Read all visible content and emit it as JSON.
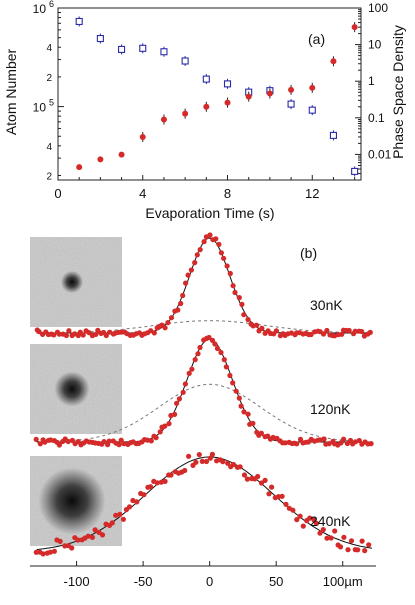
{
  "chart_data": [
    {
      "panel_label": "(a)",
      "type": "scatter",
      "xlabel": "Evaporation Time (s)",
      "ylabel_left": "Atom Number",
      "ylabel_right": "Phase Space Density",
      "x_ticks": [
        "0",
        "4",
        "8",
        "12"
      ],
      "y_left_ticks": [
        "2",
        "4",
        "10^5",
        "2",
        "4",
        "10^6"
      ],
      "y_right_ticks": [
        "0.01",
        "0.1",
        "1",
        "10",
        "100"
      ],
      "xlim": [
        0,
        14.3
      ],
      "ylim_left": [
        18000,
        1000000
      ],
      "ylim_right": [
        0.002,
        100
      ],
      "log_y": true,
      "series": [
        {
          "axis": "left",
          "marker": "open-square",
          "color": "#2b2ba8",
          "x": [
            1,
            2,
            3,
            4,
            5,
            6,
            7,
            8,
            9,
            10,
            11,
            12,
            13,
            14
          ],
          "y": [
            730000,
            490000,
            380000,
            390000,
            360000,
            290000,
            190000,
            170000,
            140000,
            145000,
            106000,
            92000,
            51000,
            22000
          ]
        },
        {
          "axis": "right",
          "marker": "filled-circle",
          "color": "#d42a2a",
          "x": [
            1,
            2,
            3,
            4,
            5,
            6,
            7,
            8,
            9,
            10,
            11,
            12,
            13,
            14
          ],
          "y": [
            0.0045,
            0.0073,
            0.0099,
            0.03,
            0.09,
            0.13,
            0.2,
            0.26,
            0.38,
            0.46,
            0.58,
            0.66,
            3.5,
            30
          ]
        }
      ]
    },
    {
      "panel_label": "(b)",
      "type": "line",
      "x_ticks": [
        "-100",
        "-50",
        "0",
        "50",
        "100µm"
      ],
      "xlim": [
        -135,
        125
      ],
      "profiles": [
        {
          "label": "30nK",
          "amplitude": 1.0,
          "sigma": 15,
          "thermal_amplitude": 0.13,
          "thermal_sigma": 42,
          "image_blob_radius": 7
        },
        {
          "label": "120nK",
          "amplitude": 1.0,
          "sigma": 17,
          "thermal_amplitude": 0.56,
          "thermal_sigma": 38,
          "image_blob_radius": 11
        },
        {
          "label": "240nK",
          "amplitude": 1.0,
          "sigma": 48,
          "thermal_amplitude": 0,
          "thermal_sigma": 0,
          "image_blob_radius": 21
        }
      ]
    }
  ],
  "colors": {
    "red": "#d42a2a",
    "blue": "#2b2ba8",
    "fit": "#111111",
    "dashed": "#777777"
  }
}
